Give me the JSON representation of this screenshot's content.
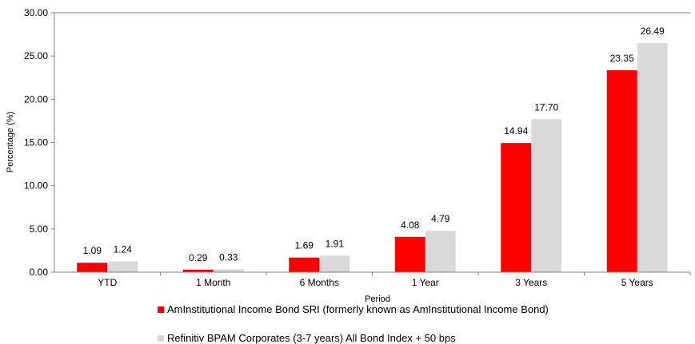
{
  "chart_data": {
    "type": "bar",
    "categories": [
      "YTD",
      "1 Month",
      "6 Months",
      "1 Year",
      "3 Years",
      "5 Years"
    ],
    "series": [
      {
        "name": "AmInstitutional Income Bond SRI (formerly known as AmInstitutional Income Bond)",
        "values": [
          1.09,
          0.29,
          1.69,
          4.08,
          14.94,
          23.35
        ],
        "color": "#ff0000"
      },
      {
        "name": "Refinitiv BPAM Corporates (3-7 years) All Bond Index + 50 bps",
        "values": [
          1.24,
          0.33,
          1.91,
          4.79,
          17.7,
          26.49
        ],
        "color": "#d9d9d9"
      }
    ],
    "xlabel": "Period",
    "ylabel": "Percentage (%)",
    "ylim": [
      0,
      30
    ],
    "yticks": [
      "0.00",
      "5.00",
      "10.00",
      "15.00",
      "20.00",
      "25.00",
      "30.00"
    ],
    "grid": false,
    "legend_position": "bottom"
  }
}
